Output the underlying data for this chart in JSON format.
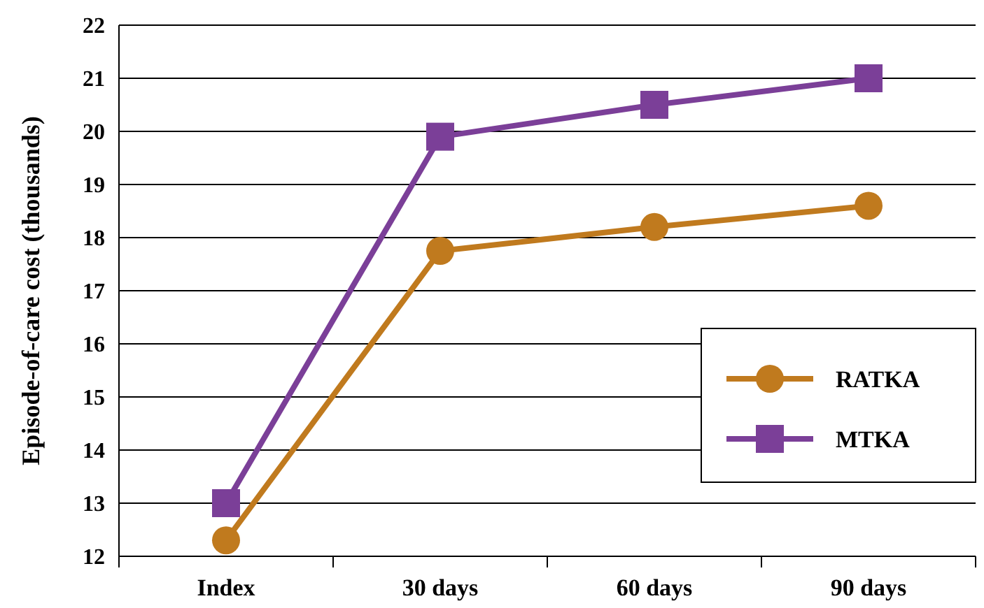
{
  "chart_data": {
    "type": "line",
    "ylabel": "Episode-of-care cost (thousands)",
    "categories": [
      "Index",
      "30 days",
      "60 days",
      "90 days"
    ],
    "series": [
      {
        "name": "RATKA",
        "color": "#c07a1e",
        "marker": "circle",
        "values": [
          12.3,
          17.75,
          18.2,
          18.6
        ]
      },
      {
        "name": "MTKA",
        "color": "#7b3f98",
        "marker": "square",
        "values": [
          13.0,
          19.9,
          20.5,
          21.0
        ]
      }
    ],
    "ylim": [
      12,
      22
    ],
    "yticks": [
      12,
      13,
      14,
      15,
      16,
      17,
      18,
      19,
      20,
      21,
      22
    ],
    "grid": "y",
    "legend": "bottom right",
    "line_style": "solid"
  }
}
